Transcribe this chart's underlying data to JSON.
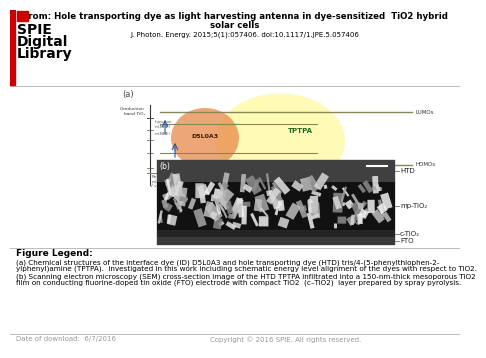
{
  "bg_color": "#ffffff",
  "spie_red": "#cc0000",
  "spie_logo_lines": [
    "SPIE",
    "Digital",
    "Library"
  ],
  "title_line1": "From: Hole transporting dye as light harvesting antenna in dye-sensitized  TiO2 hybrid",
  "title_line2": "solar cells",
  "journal_line": "J. Photon. Energy. 2015;5(1):057406. doi:10.1117/1.JPE.5.057406",
  "legend_header": "Figure Legend:",
  "legend_line1": "(a) Chemical structures of the interface dye (ID) D5L0A3 and hole transporting dye (HTD) tris/4-(5-phenylthiophen-2-",
  "legend_line2": "ylphenyl)amine (TPTPA).  investigated in this work including schematic energy level alignment of the dyes with respect to TiO2.",
  "legend_line3": "(b) Scanning electron microscopy (SEM) cross-section image of the HTD TPTPA infiltrated into a 150-nm-thick mesoporous TiO2",
  "legend_line4": "film on conducting fluorine-doped tin oxide (FTO) electrode with compact TiO2  (c–TiO2)  layer prepared by spray pyrolysis.",
  "footer_left": "Date of download:  6/7/2016",
  "footer_right": "Copyright © 2016 SPIE. All rights reserved.",
  "divider_color": "#bbbbbb",
  "footer_color": "#999999",
  "fig_a_label": "(a)",
  "fig_b_label": "(b)",
  "htd_label": "HTD",
  "mp_tio2_label": "mp-TiO₂",
  "c_tio2_label": "c-TiO₂",
  "fto_label": "FTO",
  "orange_circle_color": "#e8894a",
  "yellow_circle_color": "#fffaaa",
  "d5l0a3_label": "D5L0A3",
  "tptpa_label": "TPTPA",
  "lumos_label": "LUMOs",
  "homos_label": "HOMOs",
  "cond_band_label": "Conduction\nband TiO₂",
  "regen_label": "Regeneration\nm(SO₄)",
  "vacuum_label": "V vacuum NHE"
}
